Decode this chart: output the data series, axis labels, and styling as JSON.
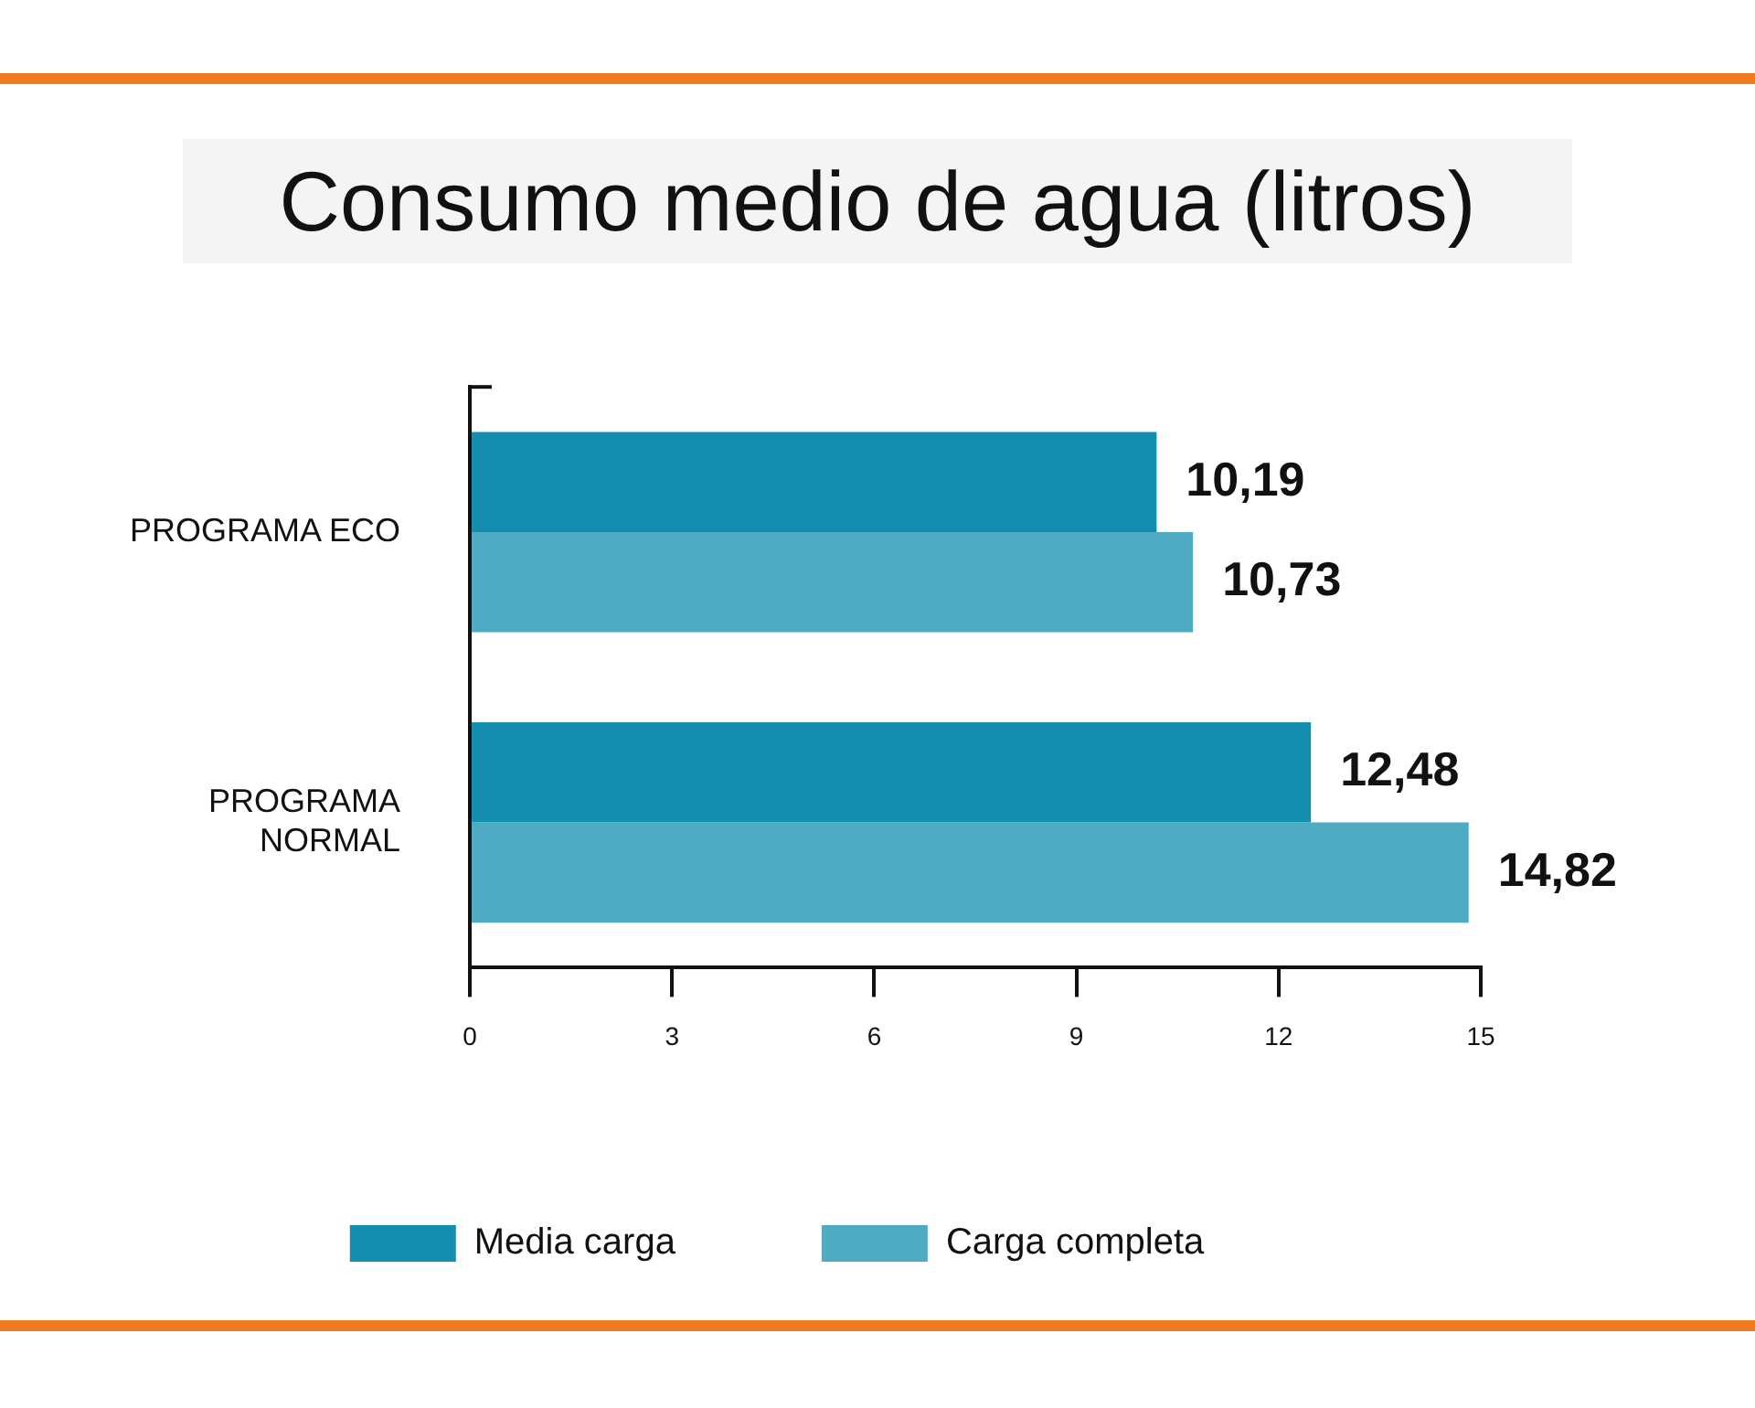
{
  "chart_data": {
    "type": "bar",
    "orientation": "horizontal",
    "title": "Consumo medio de agua (litros)",
    "categories": [
      "PROGRAMA ECO",
      "PROGRAMA NORMAL"
    ],
    "series": [
      {
        "name": "Media carga",
        "color": "#148eae",
        "values": [
          10.19,
          12.48
        ],
        "value_labels": [
          "10,19",
          "12,48"
        ]
      },
      {
        "name": "Carga completa",
        "color": "#4faac3",
        "values": [
          10.73,
          14.82
        ],
        "value_labels": [
          "10,73",
          "14,82"
        ]
      }
    ],
    "xlim": [
      0,
      15
    ],
    "xticks": [
      0,
      3,
      6,
      9,
      12,
      15
    ],
    "grid": false,
    "legend": "bottom"
  }
}
